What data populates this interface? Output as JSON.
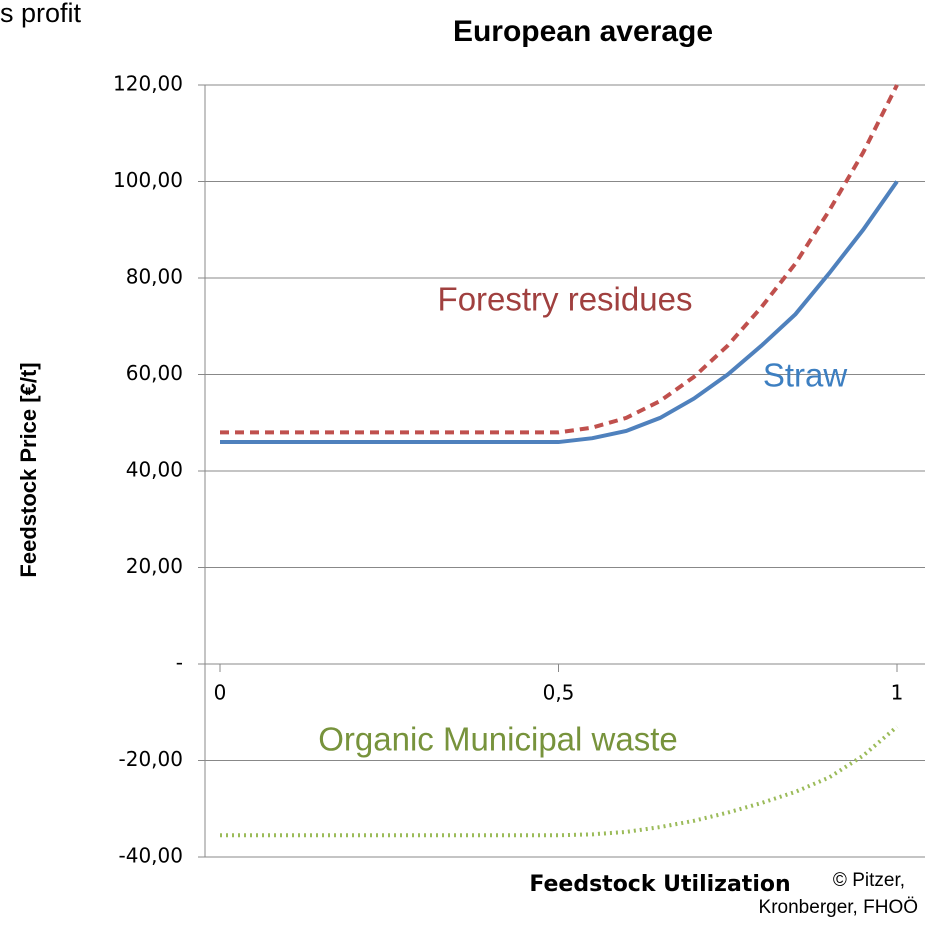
{
  "chart_data": {
    "type": "line",
    "corner_text": "s profit",
    "title": "European average",
    "xlabel": "Feedstock Utilization",
    "ylabel": "Feedstock Price [€/t]",
    "credit": [
      "© Pitzer,",
      "Kronberger, FHOÖ"
    ],
    "x": [
      0,
      0.05,
      0.1,
      0.15,
      0.2,
      0.25,
      0.3,
      0.35,
      0.4,
      0.45,
      0.5,
      0.55,
      0.6,
      0.65,
      0.7,
      0.75,
      0.8,
      0.85,
      0.9,
      0.95,
      1
    ],
    "series": [
      {
        "name": "Forestry residues",
        "color": "#c0504d",
        "values": [
          48,
          48,
          48,
          48,
          48,
          48,
          48,
          48,
          48,
          48,
          48,
          49,
          51,
          54.5,
          59.5,
          66,
          74,
          83,
          94,
          106,
          120
        ]
      },
      {
        "name": "Straw",
        "color": "#4f81bd",
        "values": [
          46,
          46,
          46,
          46,
          46,
          46,
          46,
          46,
          46,
          46,
          46,
          46.8,
          48.3,
          51,
          55,
          60,
          66,
          72.5,
          81,
          90,
          100
        ]
      },
      {
        "name": "Organic Municipal waste",
        "color": "#9bbb59",
        "values": [
          -35.5,
          -35.5,
          -35.5,
          -35.5,
          -35.5,
          -35.5,
          -35.5,
          -35.5,
          -35.5,
          -35.5,
          -35.5,
          -35.3,
          -34.8,
          -33.8,
          -32.5,
          -30.8,
          -28.8,
          -26.5,
          -23.5,
          -19,
          -13
        ]
      }
    ],
    "xlim": [
      0,
      1
    ],
    "xticks": [
      0,
      {
        "value": 0.5,
        "label": "0,5"
      },
      1
    ],
    "ylim": [
      -40,
      120
    ],
    "yticks": [
      {
        "value": -40,
        "label": "-40,00"
      },
      {
        "value": -20,
        "label": "-20,00"
      },
      {
        "value": 0,
        "label": "-"
      },
      {
        "value": 20,
        "label": "20,00"
      },
      {
        "value": 40,
        "label": "40,00"
      },
      {
        "value": 60,
        "label": "60,00"
      },
      {
        "value": 80,
        "label": "80,00"
      },
      {
        "value": 100,
        "label": "100,00"
      },
      {
        "value": 120,
        "label": "120,00"
      }
    ],
    "grid": true
  }
}
